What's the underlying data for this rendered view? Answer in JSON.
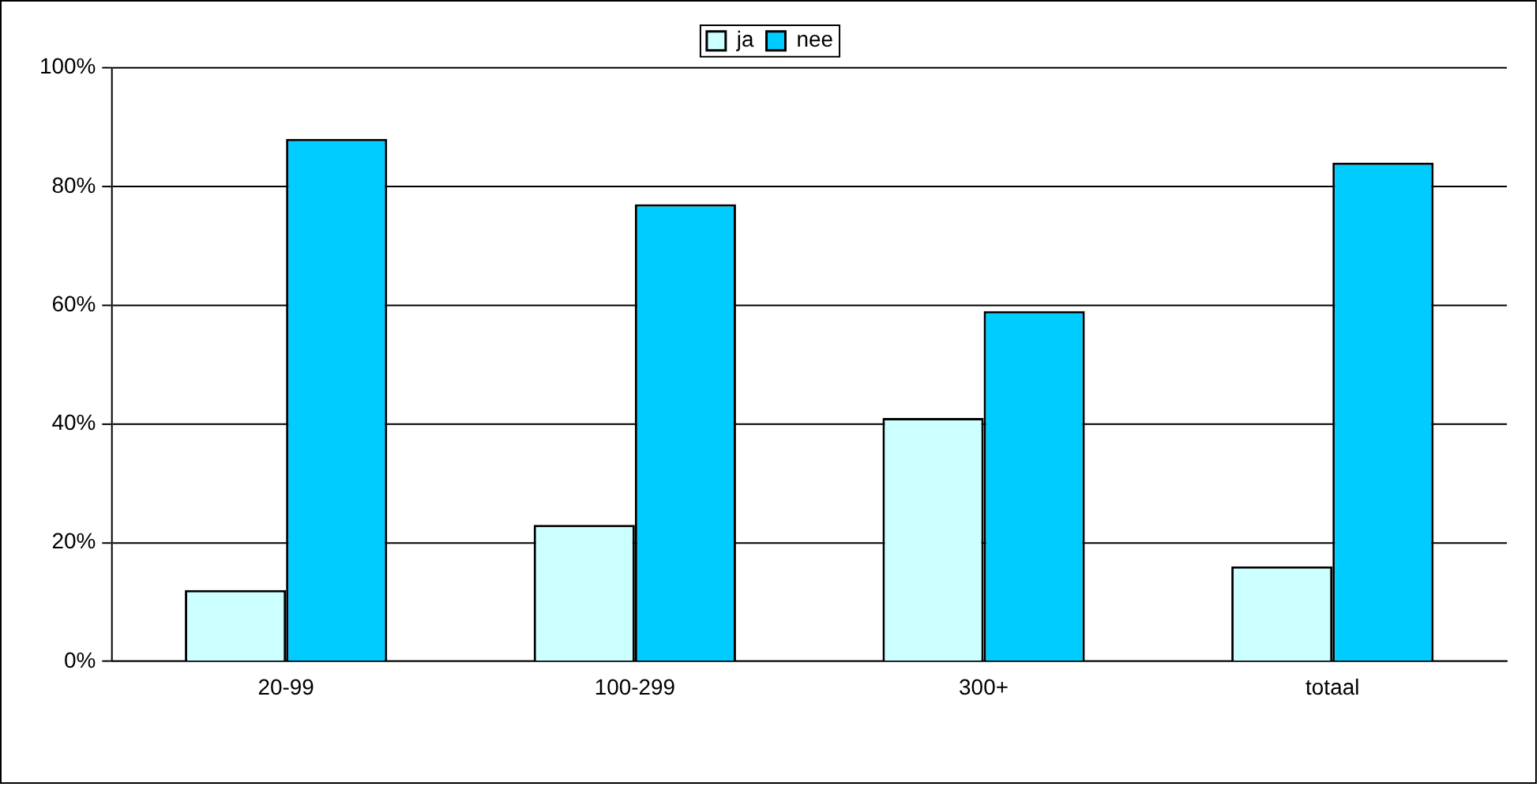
{
  "chart_data": {
    "type": "bar",
    "categories": [
      "20-99",
      "100-299",
      "300+",
      "totaal"
    ],
    "series": [
      {
        "name": "ja",
        "color": "#ccffff",
        "values": [
          12,
          23,
          41,
          16
        ]
      },
      {
        "name": "nee",
        "color": "#00ccff",
        "values": [
          88,
          77,
          59,
          84
        ]
      }
    ],
    "ylim": [
      0,
      100
    ],
    "yticks": [
      {
        "value": 0,
        "label": "0%"
      },
      {
        "value": 20,
        "label": "20%"
      },
      {
        "value": 40,
        "label": "40%"
      },
      {
        "value": 60,
        "label": "60%"
      },
      {
        "value": 80,
        "label": "80%"
      },
      {
        "value": 100,
        "label": "100%"
      }
    ],
    "grid": "y",
    "legend": "top"
  }
}
